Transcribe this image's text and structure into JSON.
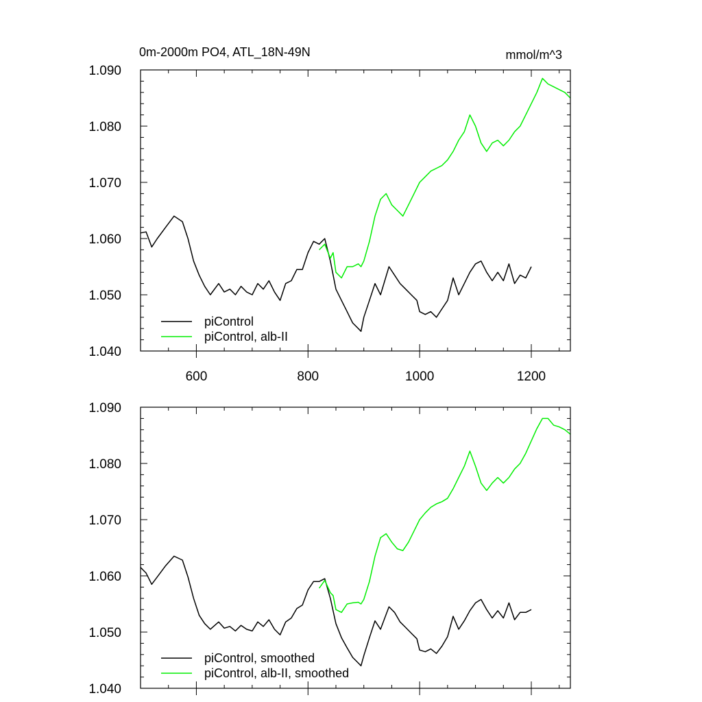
{
  "chart_data": [
    {
      "type": "line",
      "title": "0m-2000m PO4, ATL_18N-49N",
      "units": "mmol/m^3",
      "xlim": [
        500,
        1270
      ],
      "ylim": [
        1.04,
        1.09
      ],
      "xticks": [
        600,
        800,
        1000,
        1200
      ],
      "xtick_labels": [
        "600",
        "800",
        "1000",
        "1200"
      ],
      "yticks": [
        1.04,
        1.05,
        1.06,
        1.07,
        1.08,
        1.09
      ],
      "ytick_labels": [
        "1.040",
        "1.050",
        "1.060",
        "1.070",
        "1.080",
        "1.090"
      ],
      "legend_position": "bottom-left",
      "series": [
        {
          "name": "piControl",
          "color": "#000000",
          "x": [
            500,
            510,
            520,
            530,
            545,
            560,
            575,
            585,
            595,
            605,
            615,
            625,
            640,
            650,
            660,
            670,
            680,
            690,
            700,
            710,
            720,
            730,
            740,
            750,
            760,
            770,
            780,
            790,
            800,
            810,
            820,
            830,
            840,
            850,
            860,
            870,
            880,
            890,
            895,
            900,
            910,
            920,
            930,
            945,
            955,
            965,
            975,
            985,
            995,
            1000,
            1010,
            1020,
            1030,
            1040,
            1050,
            1060,
            1070,
            1080,
            1090,
            1100,
            1110,
            1120,
            1130,
            1140,
            1150,
            1160,
            1170,
            1180,
            1190,
            1200
          ],
          "y": [
            1.061,
            1.0612,
            1.0585,
            1.06,
            1.062,
            1.064,
            1.063,
            1.06,
            1.056,
            1.0535,
            1.0515,
            1.05,
            1.052,
            1.0505,
            1.051,
            1.05,
            1.0515,
            1.0505,
            1.05,
            1.052,
            1.051,
            1.0525,
            1.0505,
            1.049,
            1.052,
            1.0525,
            1.0545,
            1.0545,
            1.0575,
            1.0595,
            1.059,
            1.06,
            1.056,
            1.051,
            1.049,
            1.047,
            1.045,
            1.044,
            1.0435,
            1.046,
            1.049,
            1.052,
            1.05,
            1.055,
            1.0535,
            1.052,
            1.051,
            1.05,
            1.049,
            1.047,
            1.0465,
            1.047,
            1.046,
            1.0475,
            1.049,
            1.053,
            1.05,
            1.052,
            1.054,
            1.0555,
            1.056,
            1.054,
            1.0525,
            1.054,
            1.0525,
            1.0555,
            1.052,
            1.0535,
            1.053,
            1.055
          ]
        },
        {
          "name": "piControl, alb-II",
          "color": "#00ee00",
          "x": [
            820,
            830,
            840,
            845,
            850,
            860,
            870,
            880,
            890,
            895,
            900,
            910,
            920,
            930,
            940,
            950,
            960,
            970,
            980,
            990,
            1000,
            1010,
            1020,
            1030,
            1040,
            1050,
            1060,
            1070,
            1080,
            1090,
            1100,
            1110,
            1120,
            1130,
            1140,
            1150,
            1160,
            1170,
            1180,
            1190,
            1200,
            1210,
            1220,
            1230,
            1240,
            1250,
            1260,
            1270
          ],
          "y": [
            1.058,
            1.059,
            1.0565,
            1.0575,
            1.054,
            1.053,
            1.055,
            1.055,
            1.0555,
            1.055,
            1.056,
            1.0595,
            1.064,
            1.067,
            1.068,
            1.066,
            1.065,
            1.064,
            1.066,
            1.068,
            1.07,
            1.071,
            1.072,
            1.0725,
            1.073,
            1.074,
            1.0755,
            1.0775,
            1.079,
            1.082,
            1.08,
            1.077,
            1.0755,
            1.077,
            1.0775,
            1.0765,
            1.0775,
            1.079,
            1.08,
            1.082,
            1.084,
            1.086,
            1.0885,
            1.0875,
            1.087,
            1.0865,
            1.086,
            1.085
          ]
        }
      ]
    },
    {
      "type": "line",
      "title": "",
      "units": "",
      "xlim": [
        500,
        1270
      ],
      "ylim": [
        1.04,
        1.09
      ],
      "xticks": [
        600,
        800,
        1000,
        1200
      ],
      "xtick_labels": [
        "",
        "",
        "",
        ""
      ],
      "yticks": [
        1.04,
        1.05,
        1.06,
        1.07,
        1.08,
        1.09
      ],
      "ytick_labels": [
        "1.040",
        "1.050",
        "1.060",
        "1.070",
        "1.080",
        "1.090"
      ],
      "legend_position": "bottom-left",
      "series": [
        {
          "name": "piControl, smoothed",
          "color": "#000000",
          "x": [
            500,
            510,
            520,
            530,
            545,
            560,
            575,
            585,
            595,
            605,
            615,
            625,
            640,
            650,
            660,
            670,
            680,
            690,
            700,
            710,
            720,
            730,
            740,
            750,
            760,
            770,
            780,
            790,
            800,
            810,
            820,
            830,
            840,
            850,
            860,
            870,
            880,
            890,
            895,
            900,
            910,
            920,
            930,
            945,
            955,
            965,
            975,
            985,
            995,
            1000,
            1010,
            1020,
            1030,
            1040,
            1050,
            1060,
            1070,
            1080,
            1090,
            1100,
            1110,
            1120,
            1130,
            1140,
            1150,
            1160,
            1170,
            1180,
            1190,
            1200
          ],
          "y": [
            1.0615,
            1.0605,
            1.0585,
            1.0598,
            1.0618,
            1.0635,
            1.0628,
            1.0598,
            1.056,
            1.053,
            1.0515,
            1.0505,
            1.0518,
            1.0507,
            1.051,
            1.0502,
            1.0512,
            1.0505,
            1.0502,
            1.0518,
            1.051,
            1.0522,
            1.0505,
            1.0495,
            1.0518,
            1.0525,
            1.0542,
            1.0548,
            1.0575,
            1.059,
            1.059,
            1.0595,
            1.056,
            1.0515,
            1.049,
            1.0472,
            1.0455,
            1.0445,
            1.044,
            1.0458,
            1.049,
            1.052,
            1.0505,
            1.0545,
            1.0535,
            1.0518,
            1.0508,
            1.0498,
            1.0488,
            1.0468,
            1.0465,
            1.047,
            1.0462,
            1.0475,
            1.0492,
            1.0528,
            1.0505,
            1.052,
            1.0538,
            1.0552,
            1.0558,
            1.054,
            1.0525,
            1.0538,
            1.0525,
            1.0552,
            1.0522,
            1.0535,
            1.0535,
            1.054
          ]
        },
        {
          "name": "piControl, alb-II, smoothed",
          "color": "#00ee00",
          "x": [
            820,
            830,
            840,
            845,
            850,
            860,
            870,
            880,
            890,
            895,
            900,
            910,
            920,
            930,
            940,
            950,
            960,
            970,
            980,
            990,
            1000,
            1010,
            1020,
            1030,
            1040,
            1050,
            1060,
            1070,
            1080,
            1090,
            1100,
            1110,
            1120,
            1130,
            1140,
            1150,
            1160,
            1170,
            1180,
            1190,
            1200,
            1210,
            1220,
            1230,
            1240,
            1250,
            1260,
            1270
          ],
          "y": [
            1.0578,
            1.0592,
            1.057,
            1.0565,
            1.054,
            1.0535,
            1.055,
            1.0552,
            1.0553,
            1.055,
            1.0558,
            1.059,
            1.0635,
            1.0668,
            1.0675,
            1.066,
            1.0648,
            1.0645,
            1.066,
            1.068,
            1.07,
            1.0712,
            1.0722,
            1.0728,
            1.0732,
            1.0738,
            1.0755,
            1.0775,
            1.0795,
            1.0822,
            1.0795,
            1.0765,
            1.0752,
            1.0765,
            1.0775,
            1.0765,
            1.0775,
            1.079,
            1.08,
            1.0818,
            1.084,
            1.0862,
            1.088,
            1.088,
            1.0868,
            1.0865,
            1.086,
            1.0852
          ]
        }
      ]
    }
  ]
}
